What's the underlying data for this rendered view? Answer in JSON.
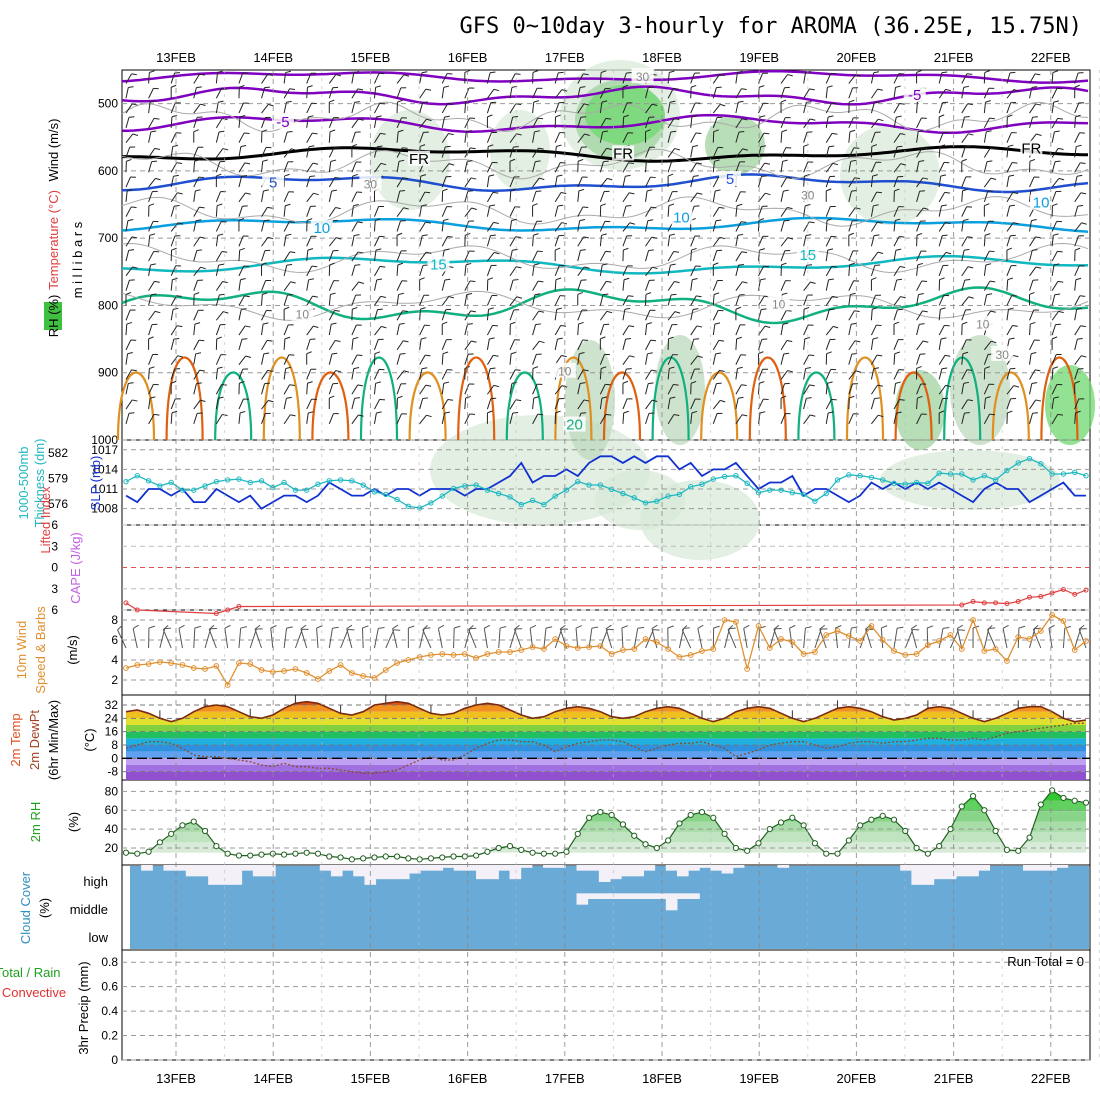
{
  "title": "GFS 0~10day 3-hourly for AROMA (36.25E, 15.75N)",
  "dates": [
    "13FEB",
    "14FEB",
    "15FEB",
    "16FEB",
    "17FEB",
    "18FEB",
    "19FEB",
    "20FEB",
    "21FEB",
    "22FEB"
  ],
  "colors": {
    "purple": "#8000c0",
    "freeze": "#000000",
    "blue": "#1f4fd0",
    "lightblue": "#0aa0e0",
    "cyan": "#10b8c0",
    "teal": "#10b080",
    "orange": "#e09020",
    "darkorange": "#e06010",
    "magenta": "#e00080",
    "rh_dark": "#6fd86f",
    "rh_light": "#d8ead8",
    "slp": "#1030d0",
    "thickness": "#20b8c0",
    "wind10": "#e09030",
    "cloud": "#6aaad6",
    "rh2m": "#20a020"
  },
  "chart_data": [
    {
      "id": "upper-air",
      "type": "heatmap",
      "ylabel": "m i l l i b a r s",
      "legend": [
        "Wind (m/s)",
        "Temperature (°C)",
        "RH (%)"
      ],
      "y_ticks": [
        "500",
        "600",
        "700",
        "800",
        "900",
        "1000"
      ],
      "ylim": [
        1000,
        450
      ],
      "contour_labels": [
        {
          "text": "-5",
          "mb": 530,
          "day": 1.1
        },
        {
          "text": "-5",
          "mb": 490,
          "day": 7.6
        },
        {
          "text": "FR",
          "mb": 585,
          "day": 2.5
        },
        {
          "text": "FR",
          "mb": 577,
          "day": 4.6
        },
        {
          "text": "FR",
          "mb": 570,
          "day": 8.8
        },
        {
          "text": "5",
          "mb": 620,
          "day": 1.0
        },
        {
          "text": "5",
          "mb": 615,
          "day": 5.7
        },
        {
          "text": "10",
          "mb": 688,
          "day": 1.5
        },
        {
          "text": "10",
          "mb": 672,
          "day": 5.2
        },
        {
          "text": "15",
          "mb": 742,
          "day": 2.7
        },
        {
          "text": "15",
          "mb": 728,
          "day": 6.5
        },
        {
          "text": "20",
          "mb": 980,
          "day": 4.1
        },
        {
          "text": "30",
          "mb": 462,
          "day": 4.8
        },
        {
          "text": "30",
          "mb": 638,
          "day": 6.5
        },
        {
          "text": "10",
          "mb": 650,
          "day": 8.9
        },
        {
          "text": "10",
          "mb": 815,
          "day": 1.3
        },
        {
          "text": "10",
          "mb": 800,
          "day": 6.2
        },
        {
          "text": "10",
          "mb": 830,
          "day": 8.3
        },
        {
          "text": "10",
          "mb": 900,
          "day": 4.0
        },
        {
          "text": "30",
          "mb": 622,
          "day": 2.0
        },
        {
          "text": "30",
          "mb": 875,
          "day": 8.5
        }
      ]
    },
    {
      "id": "slp-thickness",
      "type": "line",
      "ylabel": "SLP (mb)",
      "ylabel2": "1000-500mb Thickness (dm)",
      "y_ticks": [
        "1017",
        "1014",
        "1011",
        "1008"
      ],
      "y2_ticks": [
        "582",
        "579",
        "576"
      ],
      "series": [
        {
          "name": "SLP (mb)",
          "values": [
            1010,
            1009,
            1011,
            1011,
            1010,
            1011,
            1009,
            1009,
            1011,
            1010,
            1009,
            1010,
            1008,
            1009,
            1010,
            1010,
            1009,
            1010,
            1012,
            1011,
            1010,
            1010,
            1011,
            1010,
            1011,
            1011,
            1010,
            1011,
            1011,
            1011,
            1010,
            1011,
            1011,
            1012,
            1013,
            1015,
            1012,
            1013,
            1013,
            1014,
            1013,
            1015,
            1016,
            1016,
            1015,
            1016,
            1015,
            1016,
            1016,
            1014,
            1015,
            1013,
            1014,
            1014,
            1015,
            1013,
            1011,
            1012,
            1012,
            1013,
            1010,
            1011,
            1011,
            1010,
            1009,
            1010,
            1012,
            1011,
            1012,
            1011,
            1012,
            1011,
            1012,
            1011,
            1010,
            1009,
            1011,
            1012,
            1011,
            1011,
            1009,
            1010,
            1011,
            1012,
            1010,
            1010
          ]
        },
        {
          "name": "1000-500mb Thickness (dm)",
          "values": [
            578.6,
            579.3,
            578.7,
            578.1,
            578.5,
            577.6,
            577.6,
            578.1,
            578.6,
            578.8,
            578.9,
            578.5,
            578.7,
            577.9,
            578.5,
            577.6,
            577.6,
            578.3,
            578.7,
            578.8,
            578.7,
            578.2,
            577.4,
            577.1,
            576.5,
            575.7,
            575.5,
            576.1,
            576.9,
            577.8,
            578.1,
            578.2,
            577.6,
            577.2,
            576.8,
            575.9,
            576.4,
            575.9,
            576.9,
            577.6,
            578.6,
            578.2,
            578.2,
            577.7,
            577.2,
            576.7,
            576.1,
            576.3,
            576.9,
            577.1,
            578.0,
            578.3,
            578.9,
            579.2,
            579.3,
            578.4,
            577.3,
            577.6,
            577.6,
            577.3,
            577.1,
            576.3,
            577.2,
            578.8,
            579.4,
            579.3,
            579.1,
            578.8,
            578.4,
            578.3,
            578.5,
            578.4,
            579.6,
            579.5,
            579.5,
            578.8,
            579.3,
            578.8,
            579.9,
            580.8,
            581.3,
            580.7,
            579.5,
            579.5,
            579.7,
            579.3
          ]
        }
      ]
    },
    {
      "id": "cape-li",
      "type": "line",
      "ylabel": "CAPE (J/kg)",
      "ylabel2": "Lifted Index",
      "y_ticks": [
        "-6",
        "-3",
        "0",
        "3",
        "6"
      ],
      "series": [
        {
          "name": "Lifted Index",
          "values": [
            5,
            6,
            null,
            null,
            null,
            null,
            null,
            null,
            6.5,
            6,
            5.5,
            null,
            null,
            null,
            null,
            null,
            null,
            null,
            null,
            null,
            null,
            null,
            null,
            null,
            null,
            null,
            null,
            null,
            null,
            null,
            null,
            null,
            null,
            null,
            null,
            null,
            null,
            null,
            null,
            null,
            null,
            null,
            null,
            null,
            null,
            null,
            null,
            null,
            null,
            null,
            null,
            null,
            null,
            null,
            null,
            null,
            null,
            null,
            null,
            null,
            null,
            null,
            null,
            null,
            null,
            null,
            null,
            null,
            null,
            null,
            null,
            null,
            null,
            null,
            5.3,
            4.8,
            5,
            5,
            5.1,
            4.8,
            4.2,
            4.1,
            3.6,
            3.1,
            3.8,
            3.2
          ]
        }
      ]
    },
    {
      "id": "wind10m",
      "type": "line",
      "ylabel": "10m Wind Speed (m/s) & Barbs",
      "y_ticks": [
        "8",
        "6",
        "4",
        "2"
      ],
      "series": [
        {
          "name": "10m Wind Speed (m/s)",
          "values": [
            3.2,
            3.5,
            3.6,
            3.8,
            3.7,
            3.5,
            3.2,
            3.1,
            3.4,
            1.5,
            3.7,
            3.6,
            3.0,
            2.8,
            2.9,
            3.1,
            2.7,
            2.1,
            2.9,
            3.5,
            2.7,
            2.4,
            2.2,
            3.0,
            3.7,
            4.0,
            4.3,
            4.5,
            4.6,
            4.5,
            4.6,
            4.2,
            4.6,
            4.8,
            4.8,
            5.0,
            5.3,
            5.1,
            6.1,
            5.4,
            5.2,
            5.3,
            5.4,
            4.6,
            5.0,
            5.1,
            6.1,
            5.8,
            5.1,
            4.3,
            4.5,
            4.9,
            5.1,
            8.0,
            7.8,
            3.1,
            7.4,
            5.2,
            6.1,
            5.8,
            4.6,
            4.8,
            6.5,
            6.9,
            6.4,
            5.9,
            7.4,
            6.0,
            4.9,
            4.5,
            4.6,
            5.5,
            5.9,
            6.5,
            5.1,
            8.0,
            4.9,
            5.1,
            3.9,
            6.3,
            6.1,
            6.9,
            8.5,
            7.9,
            5.0,
            5.9
          ]
        }
      ]
    },
    {
      "id": "temp-dewpt",
      "type": "line",
      "ylabel": "2m Temp 2m DewPt (6hr Min/Max) (°C)",
      "y_ticks": [
        "32",
        "24",
        "16",
        "8",
        "0",
        "-8"
      ],
      "series": [
        {
          "name": "2m Temp",
          "values": [
            28,
            29,
            27,
            24,
            22,
            24,
            28,
            31,
            32,
            31,
            28,
            25,
            24,
            26,
            30,
            33,
            34,
            33,
            30,
            27,
            26,
            28,
            32,
            33,
            34,
            33,
            30,
            27,
            26,
            27,
            30,
            32,
            33,
            32,
            29,
            26,
            24,
            25,
            28,
            30,
            31,
            30,
            28,
            25,
            24,
            25,
            28,
            30,
            31,
            30,
            27,
            24,
            22,
            24,
            28,
            30,
            31,
            30,
            27,
            24,
            22,
            24,
            27,
            30,
            31,
            30,
            28,
            25,
            23,
            24,
            26,
            30,
            31,
            30,
            27,
            24,
            22,
            24,
            27,
            30,
            31,
            31,
            28,
            24,
            22,
            23
          ]
        },
        {
          "name": "2m DewPt",
          "values": [
            6,
            8,
            10,
            10,
            9,
            6,
            2,
            1,
            1,
            0,
            -1,
            -2,
            -4,
            -5,
            -3,
            -5,
            -5,
            -6,
            -6,
            -7,
            -8,
            -9,
            -9,
            -8,
            -7,
            -4,
            -1,
            1,
            -1,
            -1,
            2,
            6,
            9,
            11,
            11,
            10,
            10,
            8,
            4,
            7,
            9,
            10,
            11,
            11,
            10,
            7,
            4,
            6,
            8,
            9,
            9,
            10,
            8,
            6,
            1,
            3,
            5,
            8,
            9,
            10,
            10,
            8,
            6,
            7,
            9,
            10,
            10,
            9,
            10,
            10,
            11,
            12,
            12,
            11,
            11,
            12,
            11,
            13,
            15,
            16,
            17,
            18,
            19,
            20,
            21,
            21
          ]
        }
      ]
    },
    {
      "id": "rh2m",
      "type": "area",
      "ylabel": "2m RH (%)",
      "y_ticks": [
        "80",
        "60",
        "40",
        "20"
      ],
      "series": [
        {
          "name": "2m RH",
          "values": [
            15,
            14,
            16,
            26,
            35,
            44,
            48,
            38,
            22,
            14,
            12,
            12,
            13,
            14,
            13,
            14,
            15,
            14,
            11,
            10,
            8,
            9,
            10,
            11,
            11,
            9,
            8,
            9,
            10,
            11,
            11,
            12,
            16,
            20,
            22,
            18,
            15,
            14,
            14,
            16,
            35,
            52,
            58,
            55,
            45,
            33,
            24,
            20,
            28,
            46,
            55,
            58,
            52,
            35,
            20,
            17,
            25,
            40,
            47,
            52,
            44,
            25,
            14,
            14,
            28,
            44,
            50,
            54,
            50,
            38,
            20,
            14,
            22,
            40,
            64,
            75,
            60,
            38,
            18,
            17,
            31,
            66,
            81,
            73,
            70,
            68
          ]
        }
      ]
    },
    {
      "id": "cloud",
      "type": "bar",
      "ylabel": "Cloud Cover (%)",
      "levels": [
        "high",
        "middle",
        "low"
      ],
      "series": [
        {
          "name": "high",
          "values": [
            0,
            20,
            0,
            20,
            20,
            40,
            40,
            70,
            70,
            70,
            20,
            40,
            40,
            0,
            0,
            0,
            0,
            20,
            40,
            20,
            40,
            70,
            50,
            50,
            50,
            30,
            20,
            20,
            10,
            20,
            20,
            50,
            50,
            20,
            50,
            10,
            0,
            10,
            10,
            0,
            20,
            20,
            60,
            50,
            40,
            40,
            20,
            0,
            20,
            40,
            20,
            10,
            20,
            30,
            10,
            0,
            0,
            0,
            10,
            0,
            0,
            0,
            0,
            0,
            0,
            0,
            0,
            0,
            0,
            20,
            70,
            70,
            50,
            50,
            40,
            40,
            20,
            0,
            0,
            0,
            20,
            20,
            20,
            10,
            0,
            0
          ]
        },
        {
          "name": "middle",
          "values": [
            0,
            0,
            0,
            0,
            0,
            0,
            0,
            0,
            0,
            0,
            0,
            0,
            0,
            0,
            0,
            0,
            0,
            0,
            0,
            0,
            0,
            0,
            0,
            0,
            0,
            0,
            0,
            0,
            0,
            0,
            0,
            0,
            0,
            0,
            0,
            0,
            0,
            0,
            0,
            0,
            40,
            20,
            20,
            20,
            20,
            20,
            20,
            20,
            60,
            20,
            20,
            0,
            0,
            0,
            0,
            0,
            0,
            0,
            0,
            0,
            0,
            0,
            0,
            0,
            0,
            0,
            0,
            0,
            0,
            0,
            0,
            0,
            0,
            0,
            0,
            0,
            0,
            0,
            0,
            0,
            0,
            0,
            0,
            0,
            0,
            0
          ]
        },
        {
          "name": "low",
          "values": [
            0,
            0,
            0,
            0,
            0,
            0,
            0,
            0,
            0,
            0,
            0,
            0,
            0,
            0,
            0,
            0,
            0,
            0,
            0,
            0,
            0,
            0,
            0,
            0,
            0,
            0,
            0,
            0,
            0,
            0,
            0,
            0,
            0,
            0,
            0,
            0,
            0,
            0,
            0,
            0,
            0,
            0,
            0,
            0,
            0,
            0,
            0,
            0,
            0,
            0,
            0,
            0,
            0,
            0,
            0,
            0,
            0,
            0,
            0,
            0,
            0,
            0,
            0,
            0,
            0,
            0,
            0,
            0,
            0,
            0,
            0,
            0,
            0,
            0,
            0,
            0,
            0,
            0,
            0,
            0,
            0,
            0,
            0,
            0,
            0,
            0
          ]
        }
      ]
    },
    {
      "id": "precip",
      "type": "bar",
      "ylabel": "3hr Precip (mm)",
      "ylabel2": "Total / Rain",
      "ylabel3": "Convective",
      "run_total": "Run Total = 0",
      "y_ticks": [
        "0.8",
        "0.6",
        "0.4",
        "0.2",
        "0"
      ],
      "ylim": [
        0,
        0.9
      ],
      "series": [
        {
          "name": "Total",
          "values": []
        }
      ]
    }
  ]
}
